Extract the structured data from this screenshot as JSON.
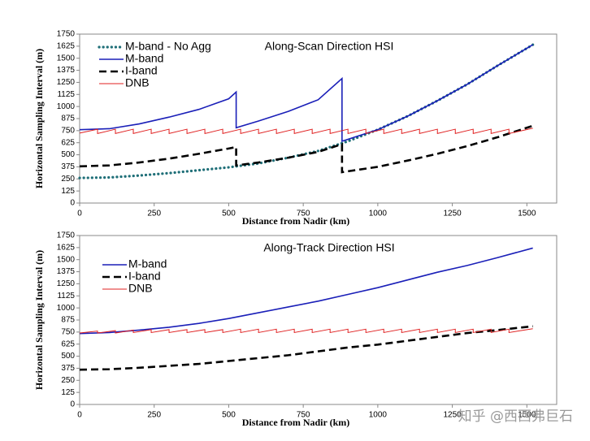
{
  "chart_data": [
    {
      "type": "line",
      "title": "Along-Scan Direction HSI",
      "x_label": "Distance from Nadir (km)",
      "y_label": "Horizontal Sampling Interval (m)",
      "xlim": [
        0,
        1600
      ],
      "xticks": [
        0,
        250,
        500,
        750,
        1000,
        1250,
        1500
      ],
      "ylim": [
        0,
        1750
      ],
      "yticks": [
        0,
        125,
        250,
        375,
        500,
        625,
        750,
        875,
        1000,
        1125,
        1250,
        1375,
        1500,
        1625,
        1750
      ],
      "legend": "top-left",
      "series": [
        {
          "name": "M-band - No Agg",
          "color": "#1f6f78",
          "style": "dotted",
          "x": [
            0,
            100,
            200,
            300,
            400,
            500,
            600,
            700,
            800,
            900,
            1000,
            1100,
            1200,
            1300,
            1400,
            1520
          ],
          "values": [
            260,
            265,
            285,
            310,
            340,
            370,
            410,
            470,
            540,
            640,
            760,
            900,
            1060,
            1230,
            1420,
            1640
          ]
        },
        {
          "name": "M-band",
          "color": "#1a1fb8",
          "style": "solid",
          "x": [
            0,
            100,
            200,
            300,
            400,
            500,
            525,
            525,
            600,
            700,
            800,
            880,
            880,
            1000,
            1100,
            1200,
            1300,
            1400,
            1520
          ],
          "values": [
            760,
            770,
            820,
            890,
            970,
            1080,
            1150,
            780,
            850,
            950,
            1070,
            1290,
            640,
            760,
            900,
            1060,
            1230,
            1420,
            1640
          ]
        },
        {
          "name": "I-band",
          "color": "#000000",
          "style": "dashed",
          "x": [
            0,
            100,
            200,
            300,
            400,
            500,
            525,
            525,
            600,
            700,
            800,
            880,
            880,
            1000,
            1100,
            1200,
            1300,
            1400,
            1520
          ],
          "values": [
            380,
            390,
            420,
            460,
            510,
            565,
            580,
            390,
            420,
            470,
            530,
            610,
            320,
            375,
            440,
            510,
            590,
            680,
            800
          ]
        },
        {
          "name": "DNB",
          "color": "#e02020",
          "style": "thin",
          "x": [
            0,
            60,
            60,
            120,
            120,
            180,
            180,
            240,
            240,
            300,
            300,
            360,
            360,
            420,
            420,
            480,
            480,
            540,
            540,
            600,
            600,
            660,
            660,
            720,
            720,
            780,
            780,
            840,
            840,
            900,
            900,
            960,
            960,
            1020,
            1020,
            1080,
            1080,
            1140,
            1140,
            1200,
            1200,
            1260,
            1260,
            1320,
            1320,
            1380,
            1380,
            1440,
            1440,
            1520
          ],
          "values": [
            725,
            765,
            720,
            765,
            720,
            765,
            720,
            765,
            720,
            765,
            720,
            765,
            720,
            765,
            720,
            765,
            720,
            765,
            720,
            765,
            720,
            765,
            720,
            765,
            720,
            765,
            720,
            765,
            720,
            765,
            720,
            765,
            720,
            765,
            720,
            765,
            720,
            765,
            720,
            765,
            720,
            765,
            720,
            765,
            720,
            765,
            720,
            765,
            720,
            775
          ]
        }
      ]
    },
    {
      "type": "line",
      "title": "Along-Track Direction HSI",
      "x_label": "Distance from Nadir (km)",
      "y_label": "Horizontal Sampling Interval (m)",
      "xlim": [
        0,
        1600
      ],
      "xticks": [
        0,
        250,
        500,
        750,
        1000,
        1250,
        1500
      ],
      "ylim": [
        0,
        1750
      ],
      "yticks": [
        0,
        125,
        250,
        375,
        500,
        625,
        750,
        875,
        1000,
        1125,
        1250,
        1375,
        1500,
        1625,
        1750
      ],
      "legend": "top-left",
      "series": [
        {
          "name": "M-band",
          "color": "#1a1fb8",
          "style": "solid",
          "x": [
            0,
            100,
            200,
            300,
            400,
            500,
            600,
            700,
            800,
            900,
            1000,
            1100,
            1200,
            1300,
            1400,
            1520
          ],
          "values": [
            735,
            745,
            770,
            800,
            840,
            890,
            950,
            1010,
            1070,
            1140,
            1210,
            1290,
            1370,
            1440,
            1520,
            1620
          ]
        },
        {
          "name": "I-band",
          "color": "#000000",
          "style": "dashed",
          "x": [
            0,
            100,
            200,
            300,
            400,
            500,
            600,
            700,
            800,
            900,
            1000,
            1100,
            1200,
            1300,
            1400,
            1520
          ],
          "values": [
            360,
            365,
            380,
            400,
            420,
            450,
            480,
            510,
            550,
            590,
            620,
            660,
            700,
            740,
            770,
            810
          ]
        },
        {
          "name": "DNB",
          "color": "#e02020",
          "style": "thin",
          "x": [
            0,
            60,
            60,
            120,
            120,
            180,
            180,
            240,
            240,
            300,
            300,
            360,
            360,
            420,
            420,
            480,
            480,
            540,
            540,
            600,
            600,
            660,
            660,
            720,
            720,
            780,
            780,
            840,
            840,
            900,
            900,
            960,
            960,
            1020,
            1020,
            1080,
            1080,
            1140,
            1140,
            1200,
            1200,
            1260,
            1260,
            1320,
            1320,
            1380,
            1380,
            1440,
            1440,
            1520
          ],
          "values": [
            740,
            760,
            740,
            765,
            740,
            770,
            745,
            775,
            745,
            775,
            745,
            775,
            745,
            775,
            745,
            775,
            745,
            780,
            745,
            780,
            745,
            780,
            745,
            780,
            745,
            780,
            745,
            780,
            745,
            780,
            745,
            780,
            745,
            780,
            745,
            780,
            745,
            780,
            745,
            780,
            745,
            780,
            745,
            780,
            745,
            780,
            745,
            780,
            745,
            785
          ]
        }
      ]
    }
  ],
  "watermark": "知乎 @西西弗巨石"
}
